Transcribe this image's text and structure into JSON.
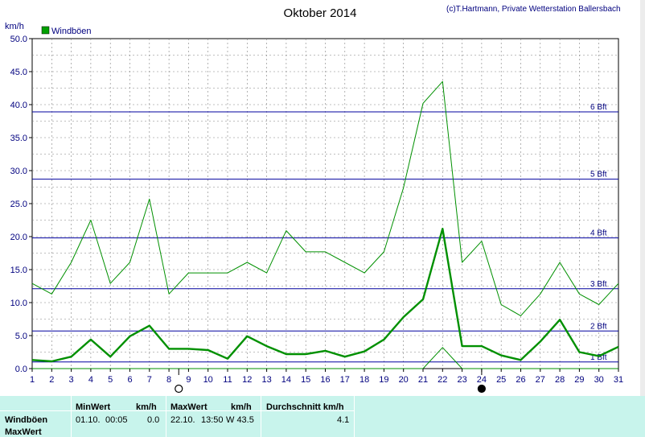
{
  "header": {
    "title": "Oktober 2014",
    "copyright": "(c)T.Hartmann, Private Wetterstation Ballersbach",
    "unit": "km/h"
  },
  "colors": {
    "series": "#009000",
    "legend_box": "#00a000",
    "bft_line": "#00009f",
    "grid": "#808080",
    "stats_bg": "#c8f4ec"
  },
  "chart_data": {
    "type": "line",
    "xlim": [
      1,
      31
    ],
    "ylim": [
      0,
      50
    ],
    "x": [
      1,
      2,
      3,
      4,
      5,
      6,
      7,
      8,
      9,
      10,
      11,
      12,
      13,
      14,
      15,
      16,
      17,
      18,
      19,
      20,
      21,
      22,
      23,
      24,
      25,
      26,
      27,
      28,
      29,
      30,
      31
    ],
    "x_tick_labels": [
      "1",
      "2",
      "3",
      "4",
      "5",
      "6",
      "7",
      "8",
      "9",
      "10",
      "11",
      "12",
      "13",
      "14",
      "15",
      "16",
      "17",
      "18",
      "19",
      "20",
      "21",
      "22",
      "23",
      "24",
      "25",
      "26",
      "27",
      "28",
      "29",
      "30",
      "31"
    ],
    "y_tick_labels": [
      "0.0",
      "5.0",
      "10.0",
      "15.0",
      "20.0",
      "25.0",
      "30.0",
      "35.0",
      "40.0",
      "45.0",
      "50.0"
    ],
    "grid": true,
    "legend": {
      "label": "Windböen",
      "position": "top-left"
    },
    "series": [
      {
        "name": "Windböen",
        "role": "max",
        "values": [
          12.9,
          11.3,
          16.1,
          22.5,
          12.9,
          16.1,
          25.7,
          11.3,
          14.5,
          14.5,
          14.5,
          16.1,
          14.5,
          20.9,
          17.7,
          17.7,
          16.1,
          14.5,
          17.7,
          27.4,
          40.2,
          43.5,
          16.1,
          19.3,
          9.7,
          8.0,
          11.3,
          16.1,
          11.3,
          9.7,
          12.9
        ]
      },
      {
        "role": "mean",
        "values": [
          1.3,
          1.1,
          1.8,
          4.4,
          1.8,
          4.9,
          6.5,
          3.0,
          3.0,
          2.8,
          1.5,
          4.9,
          3.4,
          2.2,
          2.2,
          2.7,
          1.8,
          2.6,
          4.4,
          7.8,
          10.5,
          21.2,
          3.4,
          3.4,
          2.0,
          1.3,
          4.1,
          7.4,
          2.5,
          1.9,
          3.3
        ]
      },
      {
        "role": "min",
        "values": [
          0,
          0,
          0,
          0,
          0,
          0,
          0,
          0,
          0,
          0,
          0,
          0,
          0,
          0,
          0,
          0,
          0,
          0,
          0,
          0,
          0,
          3.2,
          0,
          0,
          0,
          0,
          0,
          0,
          0,
          0,
          0
        ]
      }
    ],
    "reference_lines": [
      {
        "label": "1 Bft",
        "value": 1.0
      },
      {
        "label": "2 Bft",
        "value": 5.7
      },
      {
        "label": "3 Bft",
        "value": 12.1
      },
      {
        "label": "4 Bft",
        "value": 19.8
      },
      {
        "label": "5 Bft",
        "value": 28.7
      },
      {
        "label": "6 Bft",
        "value": 38.9
      }
    ],
    "moon_phases": [
      {
        "phase": "full-moon",
        "day": 8.5
      },
      {
        "phase": "new-moon",
        "day": 24
      }
    ]
  },
  "stats": {
    "col_headers": {
      "min": "MinWert",
      "min_unit": "km/h",
      "max": "MaxWert",
      "max_unit": "km/h",
      "avg": "Durchschnitt km/h"
    },
    "rows": [
      {
        "label": "Windböen",
        "min_date": "01.10.",
        "min_time": "00:05",
        "min_value": "0.0",
        "max_date": "22.10.",
        "max_time": "13:50",
        "max_value": "W 43.5",
        "avg_value": "4.1"
      },
      {
        "label": "MaxWert"
      }
    ]
  }
}
